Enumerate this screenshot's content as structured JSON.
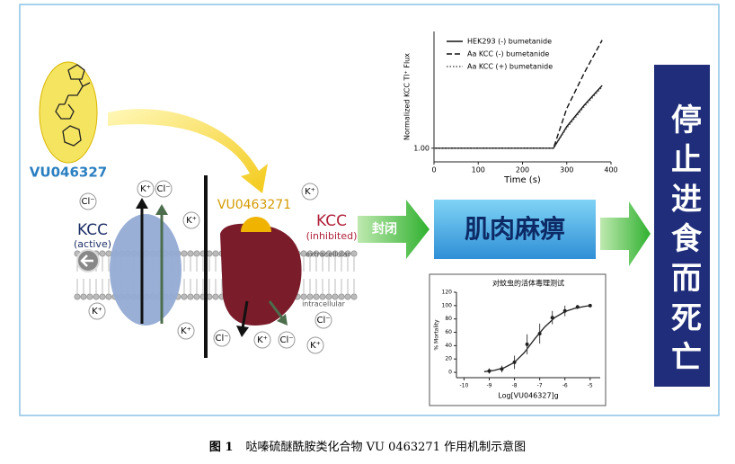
{
  "diagram": {
    "compound_label": "VU046327",
    "active_label": "KCC",
    "active_state": "(active)",
    "inhibitor_label": "VU0463271",
    "inhibited_label": "KCC",
    "inhibited_state": "(inhibited)",
    "extracellular": "extracellular",
    "intracellular": "intracellular",
    "ions": [
      "Cl⁻",
      "K⁺",
      "Cl⁻",
      "K⁺",
      "K⁺",
      "K⁺",
      "K⁺",
      "Cl⁻",
      "K⁺",
      "Cl⁻",
      "Cl⁻",
      "K⁺"
    ],
    "arrow_label": "封闭",
    "effect": "肌肉麻痹",
    "outcome": "停止进食而死亡"
  },
  "chart_data": [
    {
      "type": "line",
      "xlabel": "Time (s)",
      "ylabel": "Normalized KCC Tl⁺ Flux",
      "x": [
        0,
        50,
        100,
        150,
        200,
        250,
        270,
        300,
        340,
        380
      ],
      "xlim": [
        0,
        400
      ],
      "xticks": [
        0,
        100,
        200,
        300,
        400
      ],
      "ylim": [
        0.81,
        2.62
      ],
      "yticks": [
        {
          "value": 1,
          "label": "1.00"
        }
      ],
      "series": [
        {
          "name": "HEK293 (-) bumetanide",
          "color": "#111111",
          "style": "solid",
          "values": [
            1,
            1,
            1,
            1,
            1,
            1,
            1,
            1.3,
            1.6,
            1.87
          ]
        },
        {
          "name": "Aa KCC (-) bumetanide",
          "color": "#111111",
          "style": "dashed",
          "values": [
            1,
            1,
            1,
            1,
            1,
            1,
            1,
            1.55,
            2.05,
            2.5
          ]
        },
        {
          "name": "Aa KCC (+) bumetanide",
          "color": "#555555",
          "style": "dotted",
          "values": [
            1,
            1,
            1,
            1,
            1,
            1,
            1,
            1.28,
            1.58,
            1.85
          ]
        }
      ]
    },
    {
      "type": "dose-response",
      "title": "对蚊虫的活体毒理测试",
      "xlabel": "Log[VU046327]g",
      "ylabel": "% Mortality",
      "xlim": [
        -10.3,
        -4.6
      ],
      "xticks": [
        -10,
        -9,
        -8,
        -7,
        -6,
        -5
      ],
      "ylim": [
        -8,
        120
      ],
      "yticks": [
        0,
        20,
        40,
        60,
        80,
        100,
        120
      ],
      "x": [
        -9,
        -8.5,
        -8,
        -7.5,
        -7,
        -6.5,
        -6,
        -5.5,
        -5
      ],
      "values": [
        2,
        5,
        15,
        42,
        58,
        82,
        92,
        98,
        100
      ],
      "errors": [
        4,
        5,
        10,
        15,
        15,
        10,
        8,
        3,
        2
      ],
      "fit_x": [
        -9.2,
        -8.8,
        -8.4,
        -8,
        -7.6,
        -7.2,
        -6.8,
        -6.4,
        -6,
        -5.6,
        -5.2,
        -5
      ],
      "fit_values": [
        1,
        3,
        7,
        15,
        30,
        50,
        68,
        82,
        91,
        96,
        99,
        100
      ],
      "color": "#222222"
    }
  ],
  "caption": {
    "number": "图 1",
    "text": "哒嗪硫醚酰胺类化合物 VU 0463271 作用机制示意图"
  }
}
